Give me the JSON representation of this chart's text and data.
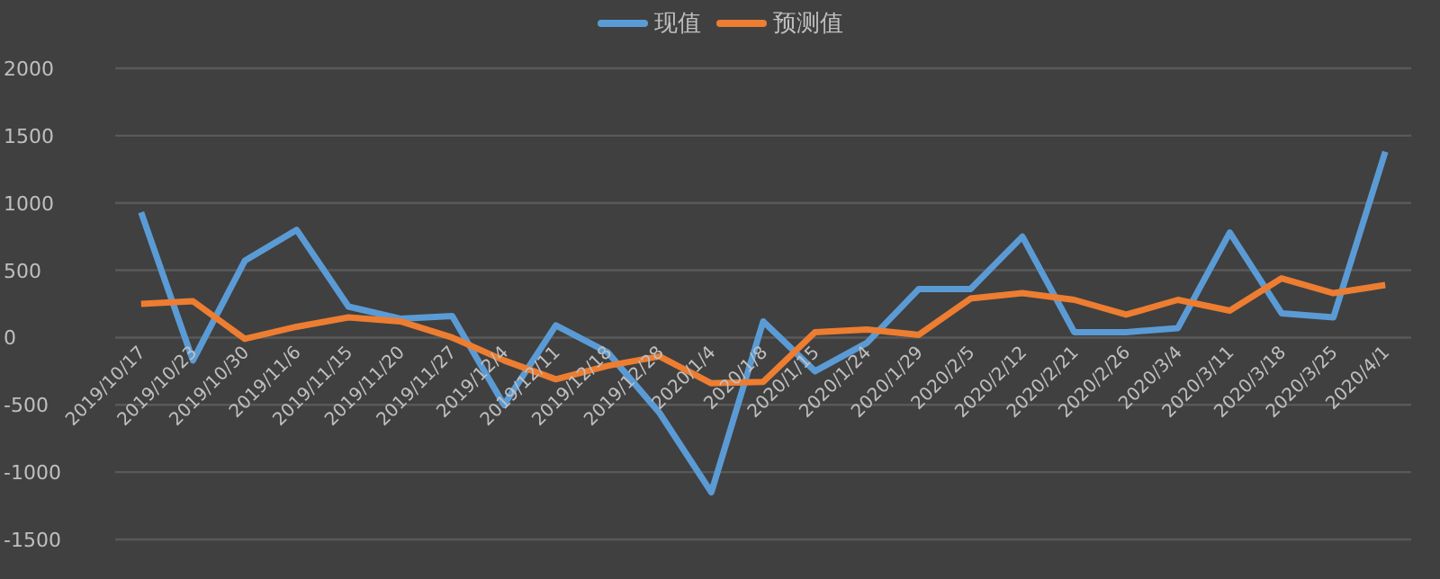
{
  "chart_data": {
    "type": "line",
    "categories": [
      "2019/10/17",
      "2019/10/23",
      "2019/10/30",
      "2019/11/6",
      "2019/11/15",
      "2019/11/20",
      "2019/11/27",
      "2019/12/4",
      "2019/12/11",
      "2019/12/18",
      "2019/12/28",
      "2020/1/4",
      "2020/1/8",
      "2020/1/15",
      "2020/1/24",
      "2020/1/29",
      "2020/2/5",
      "2020/2/12",
      "2020/2/21",
      "2020/2/26",
      "2020/3/4",
      "2020/3/11",
      "2020/3/18",
      "2020/3/25",
      "2020/4/1"
    ],
    "series": [
      {
        "name": "现值",
        "color": "#5b9bd5",
        "values": [
          930,
          -170,
          570,
          800,
          230,
          140,
          160,
          -500,
          90,
          -110,
          -560,
          -1150,
          120,
          -250,
          -40,
          360,
          360,
          750,
          40,
          40,
          70,
          780,
          180,
          150,
          1380
        ]
      },
      {
        "name": "预测值",
        "color": "#ed7d31",
        "values": [
          250,
          270,
          -10,
          80,
          150,
          120,
          0,
          -170,
          -310,
          -210,
          -140,
          -340,
          -330,
          40,
          60,
          20,
          290,
          330,
          280,
          170,
          280,
          200,
          440,
          330,
          390
        ]
      }
    ],
    "ylim": [
      -1500,
      2000
    ],
    "yticks": [
      -1500,
      -1000,
      -500,
      0,
      500,
      1000,
      1500,
      2000
    ],
    "grid": "y",
    "legend": "top",
    "marker": "none",
    "line_style": "solid"
  }
}
